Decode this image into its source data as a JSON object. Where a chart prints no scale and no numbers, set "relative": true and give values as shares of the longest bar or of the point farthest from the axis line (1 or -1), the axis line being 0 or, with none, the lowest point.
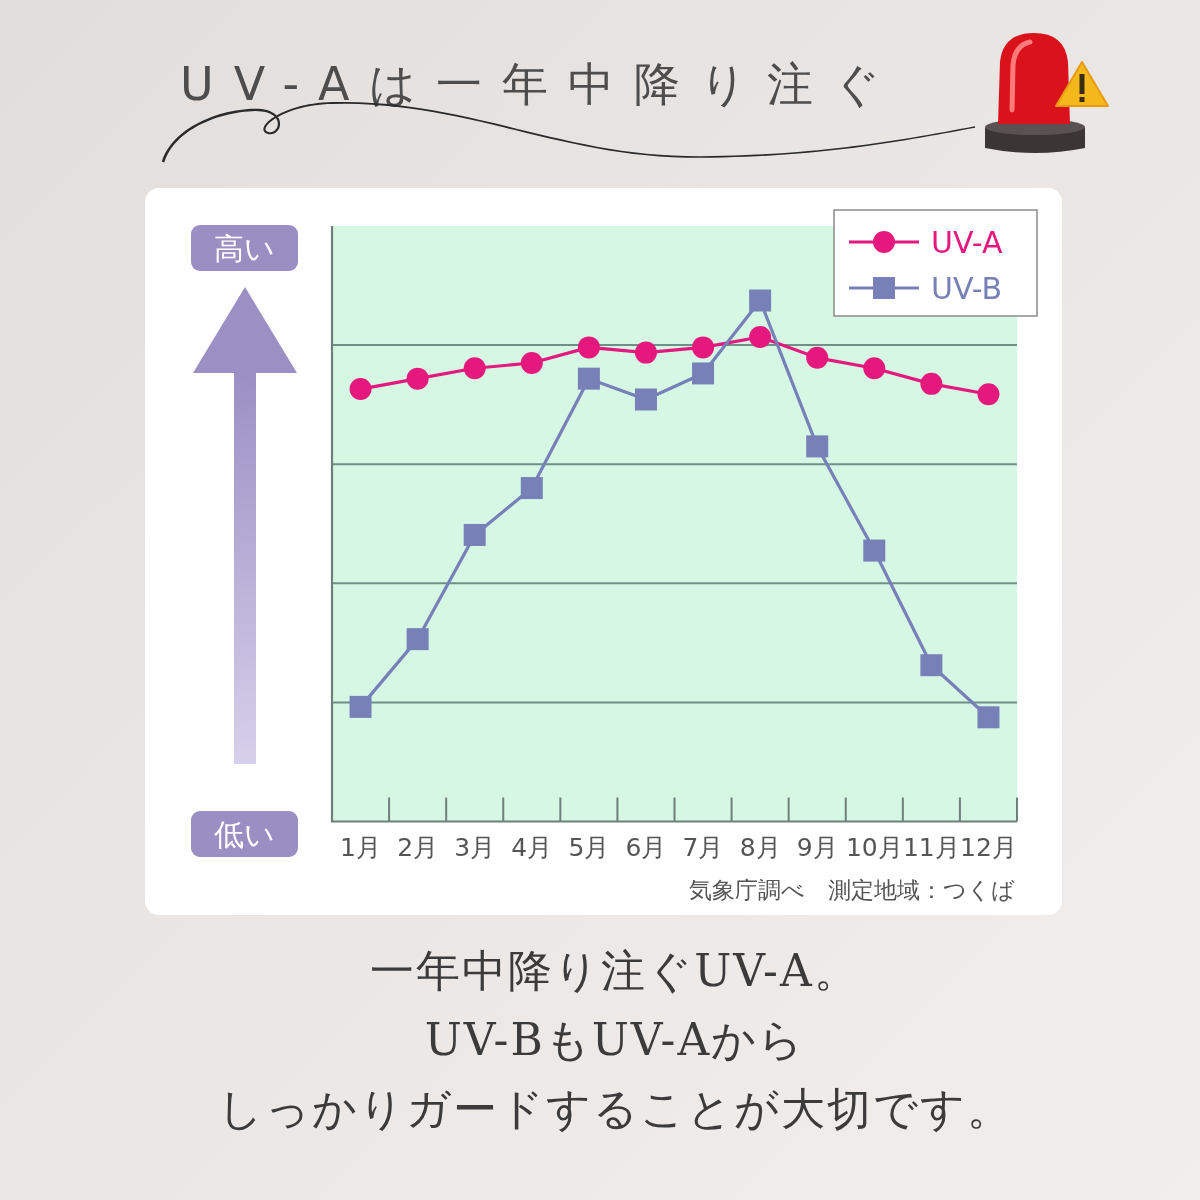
{
  "chart_data": {
    "type": "line",
    "title": "UV-Aは一年中降り注ぐ",
    "categories": [
      "1月",
      "2月",
      "3月",
      "4月",
      "5月",
      "6月",
      "7月",
      "8月",
      "9月",
      "10月",
      "11月",
      "12月"
    ],
    "relative": true,
    "series": [
      {
        "name": "UV-A",
        "color": "#e5197d",
        "marker": "circle",
        "values": [
          0.83,
          0.85,
          0.87,
          0.88,
          0.91,
          0.9,
          0.91,
          0.93,
          0.89,
          0.87,
          0.84,
          0.82
        ]
      },
      {
        "name": "UV-B",
        "color": "#7880b8",
        "marker": "square",
        "values": [
          0.22,
          0.35,
          0.55,
          0.64,
          0.85,
          0.81,
          0.86,
          1,
          0.72,
          0.52,
          0.3,
          0.2
        ]
      }
    ],
    "grid": "y",
    "legend": "top right",
    "annotations": [
      "高い",
      "低い",
      "気象庁調べ　測定地域：つくば",
      "一年中降り注ぐUV-A。",
      "UV-BもUV-Aから",
      "しっかりガードすることが大切です。"
    ]
  }
}
